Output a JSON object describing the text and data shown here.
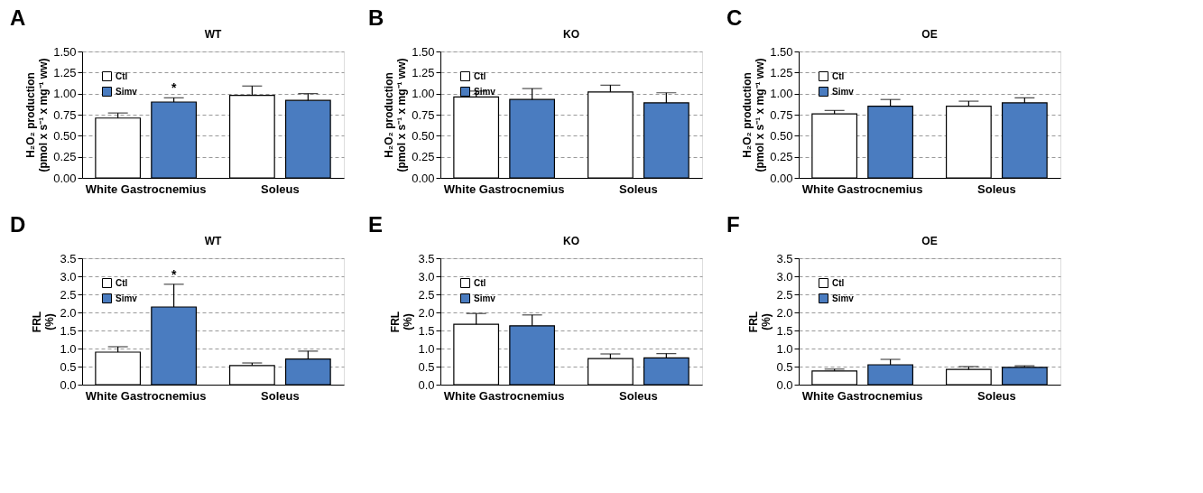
{
  "chart_data": [
    {
      "type": "bar",
      "title": "WT",
      "annotations": [
        "A",
        "*"
      ],
      "ylabel": "H₂O₂ production\n(pmol x s⁻¹ x mg⁻¹ ww)",
      "categories": [
        "White Gastrocnemius",
        "Soleus"
      ],
      "series": [
        {
          "name": "Ctl",
          "color": "#ffffff",
          "values": [
            0.71,
            0.98
          ],
          "errors": [
            [
              0.71,
              0.77
            ],
            [
              0.98,
              1.09
            ]
          ]
        },
        {
          "name": "Simv",
          "color": "#4a7cc0",
          "values": [
            0.9,
            0.92
          ],
          "errors": [
            [
              0.9,
              0.95
            ],
            [
              0.92,
              1.0
            ]
          ]
        }
      ],
      "ylim": [
        0,
        1.5
      ],
      "yticks": [
        {
          "value": 0,
          "label": "0.00"
        },
        0.25,
        {
          "value": 0.5,
          "label": "0.50"
        },
        0.75,
        {
          "value": 1,
          "label": "1.00"
        },
        1.25,
        {
          "value": 1.5,
          "label": "1.50"
        }
      ],
      "grid": "y",
      "legend": "top left"
    },
    {
      "type": "bar",
      "title": "KO",
      "annotations": [
        "B"
      ],
      "ylabel": "H₂O₂ production\n(pmol x s⁻¹ x mg⁻¹ ww)",
      "categories": [
        "White Gastrocnemius",
        "Soleus"
      ],
      "series": [
        {
          "name": "Ctl",
          "color": "#ffffff",
          "values": [
            0.96,
            1.02
          ],
          "errors": [
            [
              0.96,
              1.03
            ],
            [
              1.02,
              1.1
            ]
          ]
        },
        {
          "name": "Simv",
          "color": "#4a7cc0",
          "values": [
            0.93,
            0.89
          ],
          "errors": [
            [
              0.93,
              1.06
            ],
            [
              0.89,
              1.01
            ]
          ]
        }
      ],
      "ylim": [
        0,
        1.5
      ],
      "yticks": [
        {
          "value": 0,
          "label": "0.00"
        },
        0.25,
        {
          "value": 0.5,
          "label": "0.50"
        },
        0.75,
        {
          "value": 1,
          "label": "1.00"
        },
        1.25,
        {
          "value": 1.5,
          "label": "1.50"
        }
      ],
      "grid": "y",
      "legend": "top left"
    },
    {
      "type": "bar",
      "title": "OE",
      "annotations": [
        "C"
      ],
      "ylabel": "H₂O₂ production\n(pmol x s⁻¹ x mg⁻¹ ww)",
      "categories": [
        "White Gastrocnemius",
        "Soleus"
      ],
      "series": [
        {
          "name": "Ctl",
          "color": "#ffffff",
          "values": [
            0.76,
            0.85
          ],
          "errors": [
            [
              0.76,
              0.8
            ],
            [
              0.85,
              0.91
            ]
          ]
        },
        {
          "name": "Simv",
          "color": "#4a7cc0",
          "values": [
            0.85,
            0.89
          ],
          "errors": [
            [
              0.85,
              0.93
            ],
            [
              0.89,
              0.95
            ]
          ]
        }
      ],
      "ylim": [
        0,
        1.5
      ],
      "yticks": [
        {
          "value": 0,
          "label": "0.00"
        },
        0.25,
        {
          "value": 0.5,
          "label": "0.50"
        },
        0.75,
        {
          "value": 1,
          "label": "1.00"
        },
        1.25,
        {
          "value": 1.5,
          "label": "1.50"
        }
      ],
      "grid": "y",
      "legend": "top left"
    },
    {
      "type": "bar",
      "title": "WT",
      "annotations": [
        "D",
        "*"
      ],
      "ylabel": "FRL\n(%)",
      "categories": [
        "White Gastrocnemius",
        "Soleus"
      ],
      "series": [
        {
          "name": "Ctl",
          "color": "#ffffff",
          "values": [
            0.9,
            0.53
          ],
          "errors": [
            [
              0.9,
              1.05
            ],
            [
              0.53,
              0.6
            ]
          ]
        },
        {
          "name": "Simv",
          "color": "#4a7cc0",
          "values": [
            2.15,
            0.71
          ],
          "errors": [
            [
              2.15,
              2.78
            ],
            [
              0.71,
              0.93
            ]
          ]
        }
      ],
      "ylim": [
        0,
        3.5
      ],
      "yticks": [
        {
          "value": 0,
          "label": "0.0"
        },
        0.5,
        {
          "value": 1,
          "label": "1.0"
        },
        1.5,
        {
          "value": 2,
          "label": "2.0"
        },
        2.5,
        {
          "value": 3,
          "label": "3.0"
        },
        3.5
      ],
      "grid": "y",
      "legend": "top left"
    },
    {
      "type": "bar",
      "title": "KO",
      "annotations": [
        "E"
      ],
      "ylabel": "FRL\n(%)",
      "categories": [
        "White Gastrocnemius",
        "Soleus"
      ],
      "series": [
        {
          "name": "Ctl",
          "color": "#ffffff",
          "values": [
            1.67,
            0.72
          ],
          "errors": [
            [
              1.67,
              1.97
            ],
            [
              0.72,
              0.85
            ]
          ]
        },
        {
          "name": "Simv",
          "color": "#4a7cc0",
          "values": [
            1.63,
            0.74
          ],
          "errors": [
            [
              1.63,
              1.93
            ],
            [
              0.74,
              0.86
            ]
          ]
        }
      ],
      "ylim": [
        0,
        3.5
      ],
      "yticks": [
        {
          "value": 0,
          "label": "0.0"
        },
        0.5,
        {
          "value": 1,
          "label": "1.0"
        },
        1.5,
        {
          "value": 2,
          "label": "2.0"
        },
        2.5,
        {
          "value": 3,
          "label": "3.0"
        },
        3.5
      ],
      "grid": "y",
      "legend": "top left"
    },
    {
      "type": "bar",
      "title": "OE",
      "annotations": [
        "F"
      ],
      "ylabel": "FRL\n(%)",
      "categories": [
        "White Gastrocnemius",
        "Soleus"
      ],
      "series": [
        {
          "name": "Ctl",
          "color": "#ffffff",
          "values": [
            0.38,
            0.42
          ],
          "errors": [
            [
              0.38,
              0.43
            ],
            [
              0.42,
              0.5
            ]
          ]
        },
        {
          "name": "Simv",
          "color": "#4a7cc0",
          "values": [
            0.55,
            0.48
          ],
          "errors": [
            [
              0.55,
              0.7
            ],
            [
              0.48,
              0.52
            ]
          ]
        }
      ],
      "ylim": [
        0,
        3.5
      ],
      "yticks": [
        {
          "value": 0,
          "label": "0.0"
        },
        0.5,
        {
          "value": 1,
          "label": "1.0"
        },
        1.5,
        {
          "value": 2,
          "label": "2.0"
        },
        2.5,
        {
          "value": 3,
          "label": "3.0"
        },
        3.5
      ],
      "grid": "y",
      "legend": "top left"
    }
  ]
}
